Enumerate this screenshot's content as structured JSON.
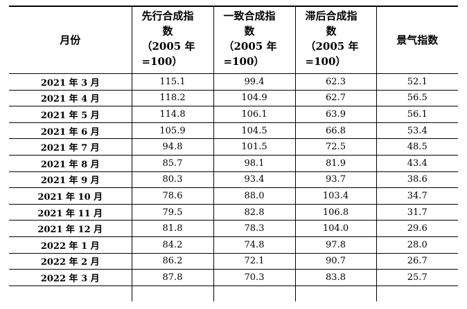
{
  "table": {
    "headers": [
      {
        "title": "月份"
      },
      {
        "title": "先行合成指数",
        "line1": "先行合成指",
        "line2": "数",
        "base1": "（2005 年",
        "base2": "=100）"
      },
      {
        "title": "一致合成指数",
        "line1": "一致合成指",
        "line2": "数",
        "base1": "（2005 年",
        "base2": "=100）"
      },
      {
        "title": "滞后合成指数",
        "line1": "滞后合成指",
        "line2": "数",
        "base1": "（2005 年",
        "base2": "=100）"
      },
      {
        "title": "景气指数"
      }
    ],
    "rows": [
      {
        "month": "2021 年 3 月",
        "leading": "115.1",
        "coincident": "99.4",
        "lagging": "62.3",
        "climate": "52.1"
      },
      {
        "month": "2021 年 4 月",
        "leading": "118.2",
        "coincident": "104.9",
        "lagging": "62.7",
        "climate": "56.5"
      },
      {
        "month": "2021 年 5 月",
        "leading": "114.8",
        "coincident": "106.1",
        "lagging": "63.9",
        "climate": "56.1"
      },
      {
        "month": "2021 年 6 月",
        "leading": "105.9",
        "coincident": "104.5",
        "lagging": "66.8",
        "climate": "53.4"
      },
      {
        "month": "2021 年 7 月",
        "leading": "94.8",
        "coincident": "101.5",
        "lagging": "72.5",
        "climate": "48.5"
      },
      {
        "month": "2021 年 8 月",
        "leading": "85.7",
        "coincident": "98.1",
        "lagging": "81.9",
        "climate": "43.4"
      },
      {
        "month": "2021 年 9 月",
        "leading": "80.3",
        "coincident": "93.4",
        "lagging": "93.7",
        "climate": "38.6"
      },
      {
        "month": "2021 年 10 月",
        "leading": "78.6",
        "coincident": "88.0",
        "lagging": "103.4",
        "climate": "34.7"
      },
      {
        "month": "2021 年 11 月",
        "leading": "79.5",
        "coincident": "82.8",
        "lagging": "106.8",
        "climate": "31.7"
      },
      {
        "month": "2021 年 12 月",
        "leading": "81.8",
        "coincident": "78.3",
        "lagging": "104.0",
        "climate": "29.6"
      },
      {
        "month": "2022 年 1 月",
        "leading": "84.2",
        "coincident": "74.8",
        "lagging": "97.8",
        "climate": "28.0"
      },
      {
        "month": "2022 年 2 月",
        "leading": "86.2",
        "coincident": "72.1",
        "lagging": "90.7",
        "climate": "26.7"
      },
      {
        "month": "2022 年 3 月",
        "leading": "87.8",
        "coincident": "70.3",
        "lagging": "83.8",
        "climate": "25.7"
      }
    ]
  }
}
